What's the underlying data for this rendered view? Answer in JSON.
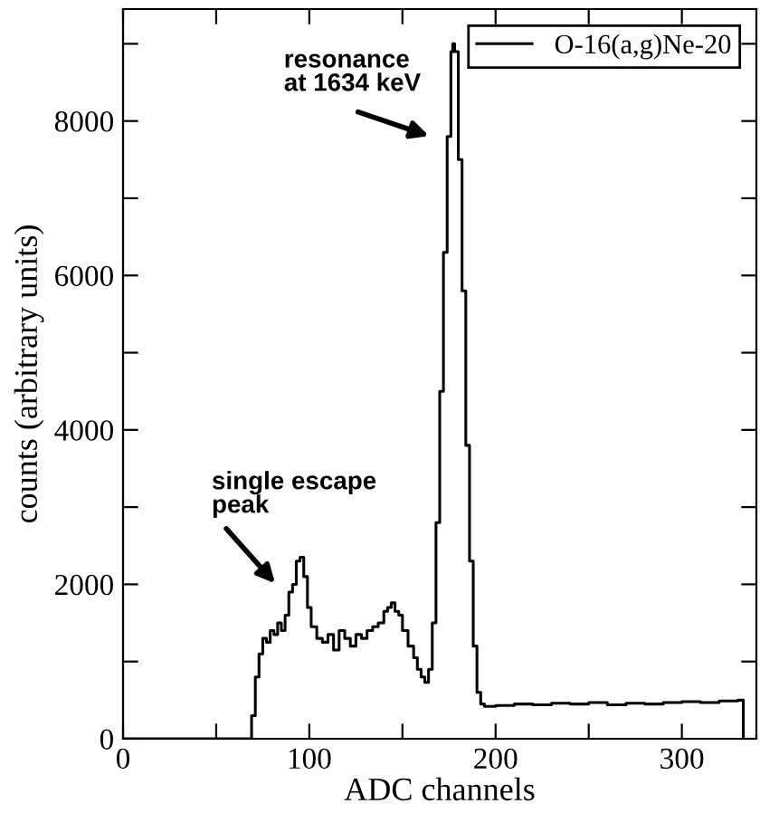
{
  "chart_data": {
    "type": "step",
    "xlabel": "ADC channels",
    "ylabel": "counts (arbitrary units)",
    "x": [
      0,
      69,
      71,
      73,
      75,
      77,
      79,
      81,
      83,
      85,
      87,
      89,
      91,
      93,
      95,
      97,
      99,
      101,
      104,
      107,
      110,
      113,
      116,
      119,
      122,
      125,
      128,
      131,
      134,
      137,
      140,
      142,
      144,
      146,
      148,
      150,
      153,
      156,
      158,
      160,
      162,
      164,
      166,
      168,
      170,
      172,
      174,
      176,
      177,
      178,
      180,
      182,
      184,
      186,
      188,
      190,
      192,
      194,
      200,
      210,
      220,
      230,
      240,
      250,
      260,
      270,
      280,
      290,
      300,
      310,
      320,
      330,
      333
    ],
    "series": [
      {
        "name": "O-16(a,g)Ne-20",
        "color": "#000000",
        "values": [
          0,
          300,
          800,
          1100,
          1300,
          1250,
          1400,
          1350,
          1500,
          1400,
          1600,
          1900,
          2000,
          2300,
          2350,
          2100,
          1700,
          1450,
          1300,
          1250,
          1350,
          1150,
          1400,
          1300,
          1200,
          1350,
          1300,
          1400,
          1450,
          1500,
          1650,
          1700,
          1760,
          1650,
          1600,
          1400,
          1200,
          1050,
          900,
          800,
          730,
          900,
          1500,
          2800,
          4500,
          6300,
          7800,
          8900,
          9000,
          8900,
          7500,
          5800,
          3800,
          2300,
          1200,
          600,
          450,
          420,
          430,
          450,
          440,
          460,
          450,
          470,
          440,
          460,
          450,
          470,
          480,
          470,
          490,
          500,
          0
        ]
      }
    ],
    "xlim": [
      0,
      340
    ],
    "ylim": [
      0,
      9450
    ],
    "xticks": [
      0,
      {
        "value": 50,
        "label": null
      },
      100,
      {
        "value": 150,
        "label": null
      },
      200,
      {
        "value": 250,
        "label": null
      },
      300
    ],
    "yticks": [
      0,
      {
        "value": 1000,
        "label": null
      },
      2000,
      {
        "value": 3000,
        "label": null
      },
      4000,
      {
        "value": 5000,
        "label": null
      },
      6000,
      {
        "value": 7000,
        "label": null
      },
      8000,
      {
        "value": 9000,
        "label": null
      }
    ],
    "annotations": [
      "resonance\nat 1634 keV",
      "single escape\npeak"
    ],
    "legend": "top right",
    "grid": false
  }
}
